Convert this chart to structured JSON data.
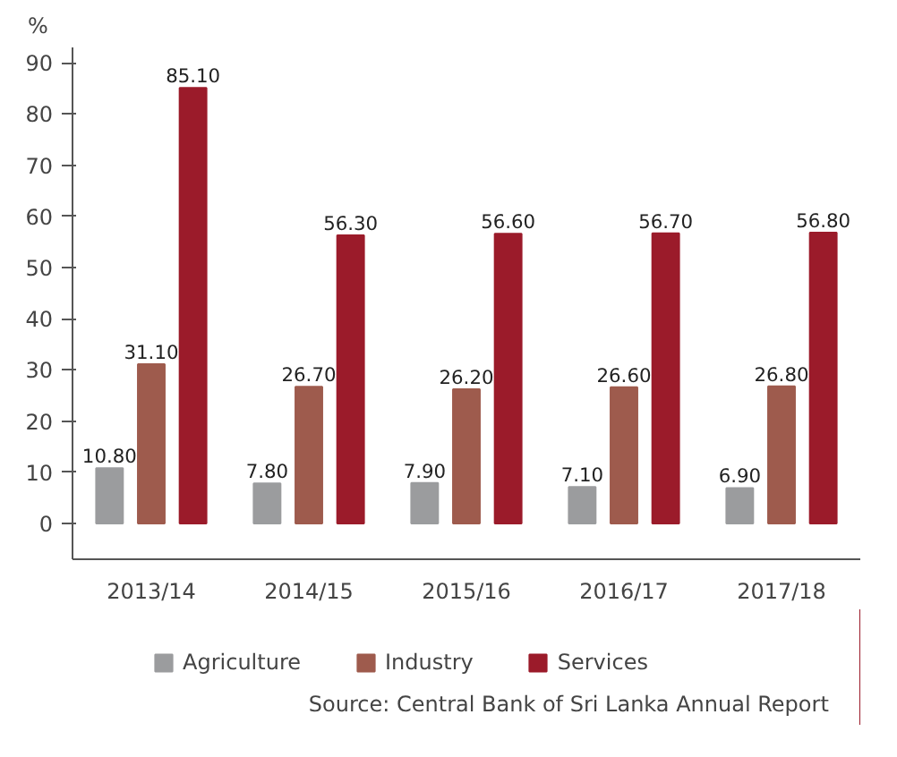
{
  "chart_data": {
    "type": "bar",
    "ylabel": "%",
    "categories": [
      "2013/14",
      "2014/15",
      "2015/16",
      "2016/17",
      "2017/18"
    ],
    "series": [
      {
        "name": "Agriculture",
        "color": "#9b9c9e",
        "values": [
          10.8,
          7.8,
          7.9,
          7.1,
          6.9
        ],
        "value_labels": [
          "10.80",
          "7.80",
          "7.90",
          "7.10",
          "6.90"
        ]
      },
      {
        "name": "Industry",
        "color": "#9e5b4d",
        "values": [
          31.1,
          26.7,
          26.2,
          26.6,
          26.8
        ],
        "value_labels": [
          "31.10",
          "26.70",
          "26.20",
          "26.60",
          "26.80"
        ]
      },
      {
        "name": "Services",
        "color": "#9b1b2a",
        "values": [
          85.1,
          56.3,
          56.6,
          56.7,
          56.8
        ],
        "value_labels": [
          "85.10",
          "56.30",
          "56.60",
          "56.70",
          "56.80"
        ]
      }
    ],
    "ylim": [
      -7,
      93
    ],
    "yticks": [
      0,
      10,
      20,
      30,
      40,
      50,
      60,
      70,
      80,
      90
    ],
    "grid": false,
    "legend": "bottom",
    "annotations": [
      "Source: Central Bank of Sri Lanka Annual Report"
    ]
  }
}
